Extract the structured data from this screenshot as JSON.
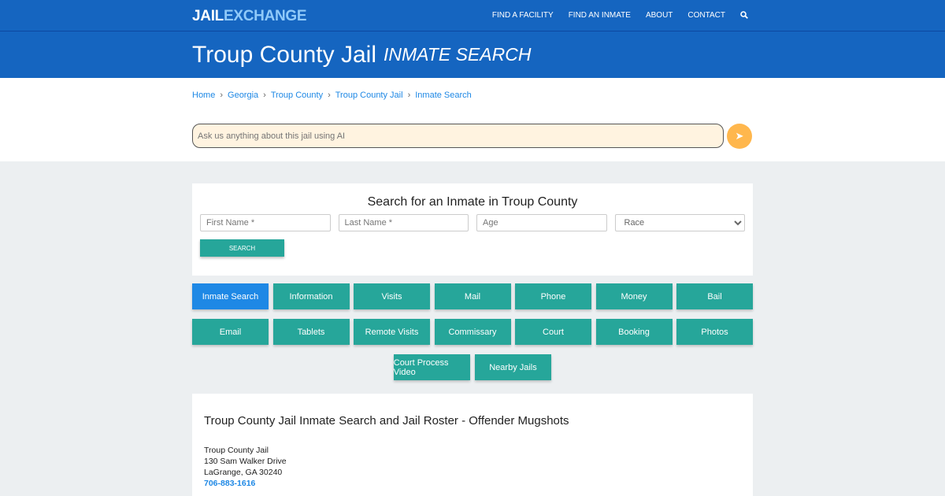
{
  "nav": {
    "logo_a": "JAIL",
    "logo_b": "EXCHANGE",
    "items": [
      "FIND A FACILITY",
      "FIND AN INMATE",
      "ABOUT",
      "CONTACT"
    ]
  },
  "header": {
    "title": "Troup County Jail",
    "subtitle": "INMATE SEARCH"
  },
  "breadcrumb": [
    "Home",
    "Georgia",
    "Troup County",
    "Troup County Jail",
    "Inmate Search"
  ],
  "ai": {
    "placeholder": "Ask us anything about this jail using AI"
  },
  "search": {
    "title": "Search for an Inmate in Troup County",
    "first": "First Name *",
    "last": "Last Name *",
    "age": "Age",
    "race": "Race",
    "button": "SEARCH"
  },
  "tabs": [
    [
      "Inmate Search",
      "Information",
      "Visits",
      "Mail",
      "Phone",
      "Money",
      "Bail"
    ],
    [
      "Email",
      "Tablets",
      "Remote Visits",
      "Commissary",
      "Court",
      "Booking",
      "Photos"
    ],
    [
      "Court Process Video",
      "Nearby Jails"
    ]
  ],
  "info": {
    "title": "Troup County Jail Inmate Search and Jail Roster - Offender Mugshots",
    "name": "Troup County Jail",
    "street": "130 Sam Walker Drive",
    "city": "LaGrange, GA 30240",
    "phone": "706-883-1616"
  },
  "colors": {
    "primary": "#1565c0",
    "teal": "#26a69a",
    "active": "#1e88e5"
  }
}
